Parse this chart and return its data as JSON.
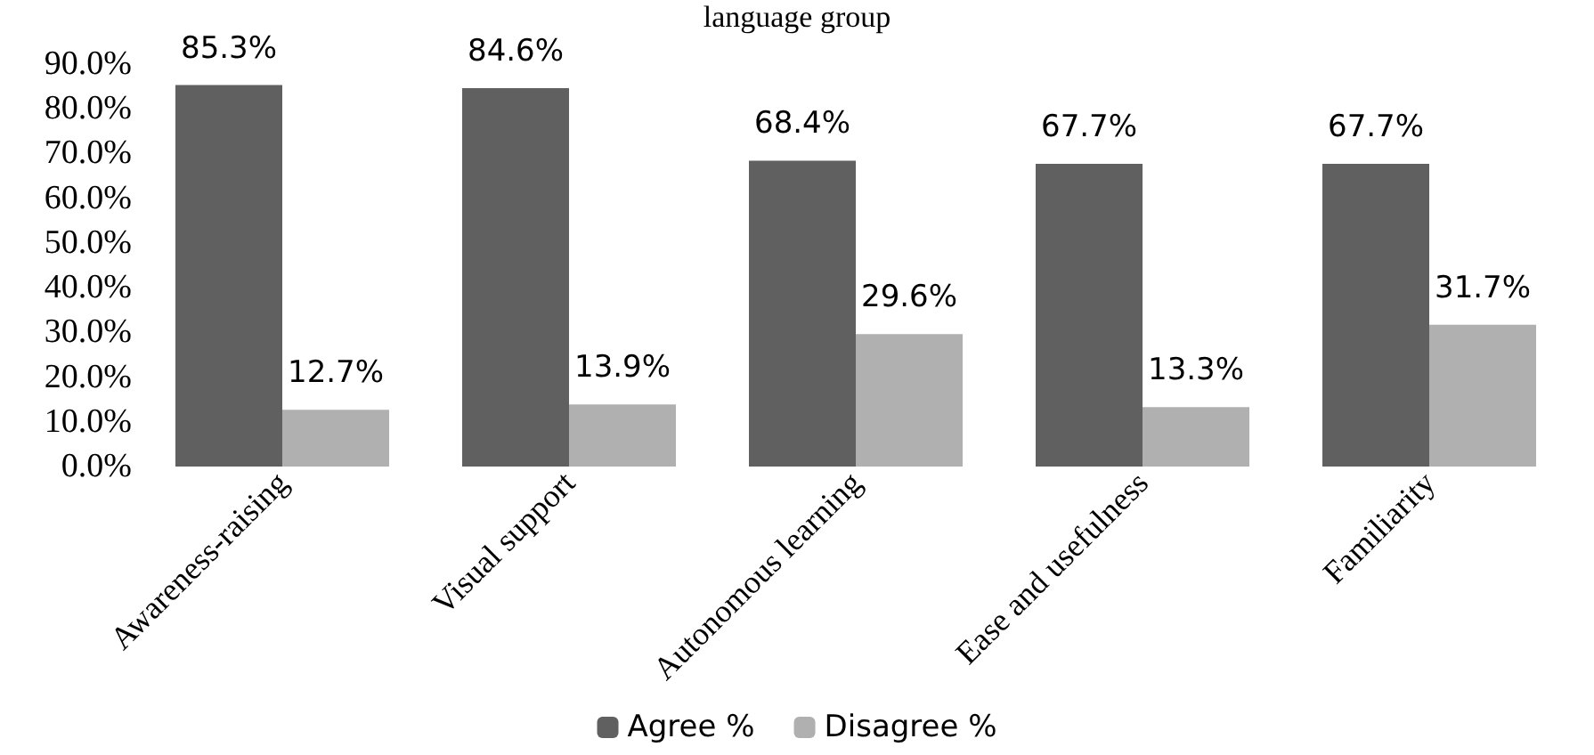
{
  "chart_data": {
    "type": "bar",
    "title": "language group",
    "categories": [
      "Awareness-raising",
      "Visual support",
      "Autonomous learning",
      "Ease and usefulness",
      "Familiarity"
    ],
    "series": [
      {
        "name": "Agree %",
        "color": "#606060",
        "values": [
          85.3,
          84.6,
          68.4,
          67.7,
          67.7
        ]
      },
      {
        "name": "Disagree %",
        "color": "#b0b0b0",
        "values": [
          12.7,
          13.9,
          29.6,
          13.3,
          31.7
        ]
      }
    ],
    "ylim": [
      0,
      90
    ],
    "yticks": [
      {
        "value": 0,
        "label": "0.0%"
      },
      {
        "value": 10,
        "label": "10.0%"
      },
      {
        "value": 20,
        "label": "20.0%"
      },
      {
        "value": 30,
        "label": "30.0%"
      },
      {
        "value": 40,
        "label": "40.0%"
      },
      {
        "value": 50,
        "label": "50.0%"
      },
      {
        "value": 60,
        "label": "60.0%"
      },
      {
        "value": 70,
        "label": "70.0%"
      },
      {
        "value": 80,
        "label": "80.0%"
      },
      {
        "value": 90,
        "label": "90.0%"
      }
    ],
    "value_labels": [
      [
        "85.3%",
        "84.6%",
        "68.4%",
        "67.7%",
        "67.7%"
      ],
      [
        "12.7%",
        "13.9%",
        "29.6%",
        "13.3%",
        "31.7%"
      ]
    ],
    "grid": false,
    "legend": "bottom"
  }
}
